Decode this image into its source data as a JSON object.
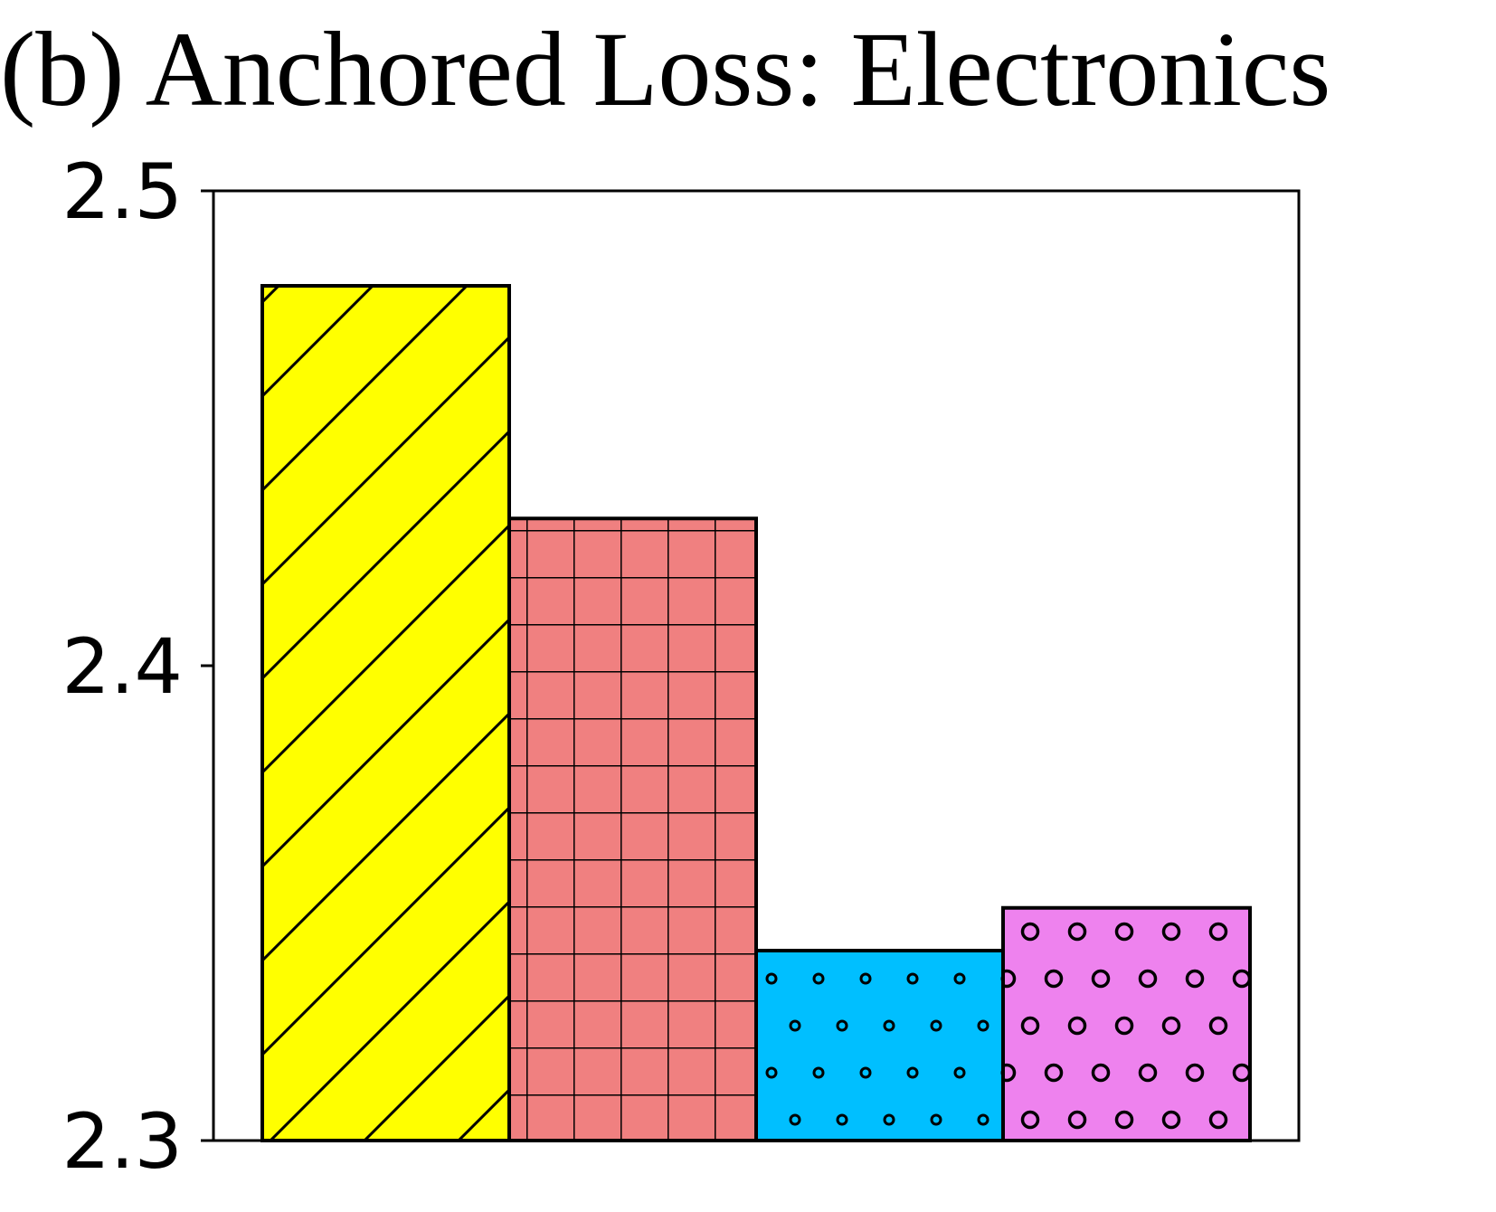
{
  "chart_data": {
    "type": "bar",
    "title": "(b) Anchored Loss: Electronics",
    "xlabel": "",
    "ylabel": "",
    "ylim": [
      2.3,
      2.5
    ],
    "yticks": [
      "2.3",
      "2.4",
      "2.5"
    ],
    "grid": false,
    "bars": [
      {
        "value": 2.48,
        "color": "#ffff00",
        "pattern": "diagonal-hatch"
      },
      {
        "value": 2.431,
        "color": "#f08080",
        "pattern": "grid-hatch"
      },
      {
        "value": 2.34,
        "color": "#00bfff",
        "pattern": "small-circles"
      },
      {
        "value": 2.349,
        "color": "#ee82ee",
        "pattern": "large-circles"
      }
    ]
  }
}
